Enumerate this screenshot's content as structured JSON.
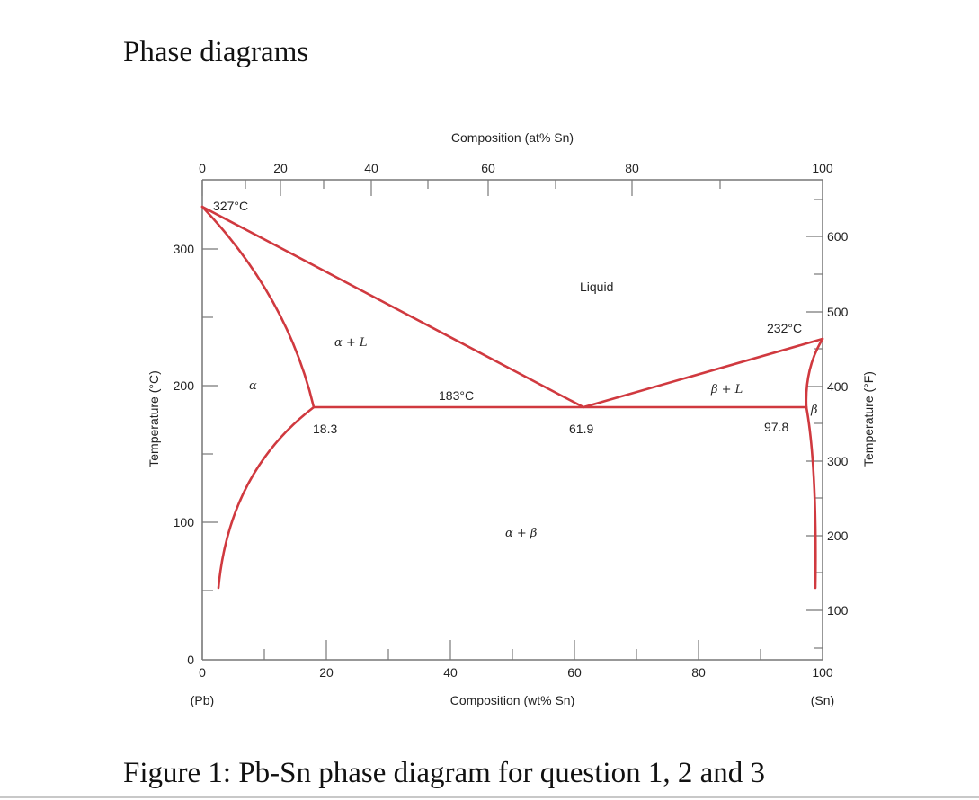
{
  "page": {
    "title": "Phase diagrams",
    "caption": "Figure 1: Pb-Sn phase diagram for question 1, 2 and 3"
  },
  "colors": {
    "phase_boundary": "#d0393f",
    "axes": "#777777"
  },
  "diagram": {
    "top_axis_title": "Composition (at% Sn)",
    "bottom_axis_title": "Composition (wt% Sn)",
    "left_axis_title": "Temperature (°C)",
    "right_axis_title": "Temperature (°F)",
    "left_end_label": "(Pb)",
    "right_end_label": "(Sn)",
    "bottom_ticks": [
      "0",
      "20",
      "40",
      "60",
      "80",
      "100"
    ],
    "top_ticks": [
      "0",
      "20",
      "40",
      "60",
      "80",
      "100"
    ],
    "left_ticks": [
      "0",
      "100",
      "200",
      "300"
    ],
    "right_ticks": [
      "100",
      "200",
      "300",
      "400",
      "500",
      "600"
    ],
    "labels": {
      "pb_melting": "327°C",
      "sn_melting": "232°C",
      "eutectic_temp": "183°C",
      "alpha_solvus": "18.3",
      "eutectic_comp": "61.9",
      "beta_solvus": "97.8",
      "liquid": "Liquid",
      "alpha_plus_liquid": "α + L",
      "alpha": "α",
      "beta_plus_liquid": "β + L",
      "beta": "β",
      "alpha_plus_beta": "α + β"
    }
  }
}
